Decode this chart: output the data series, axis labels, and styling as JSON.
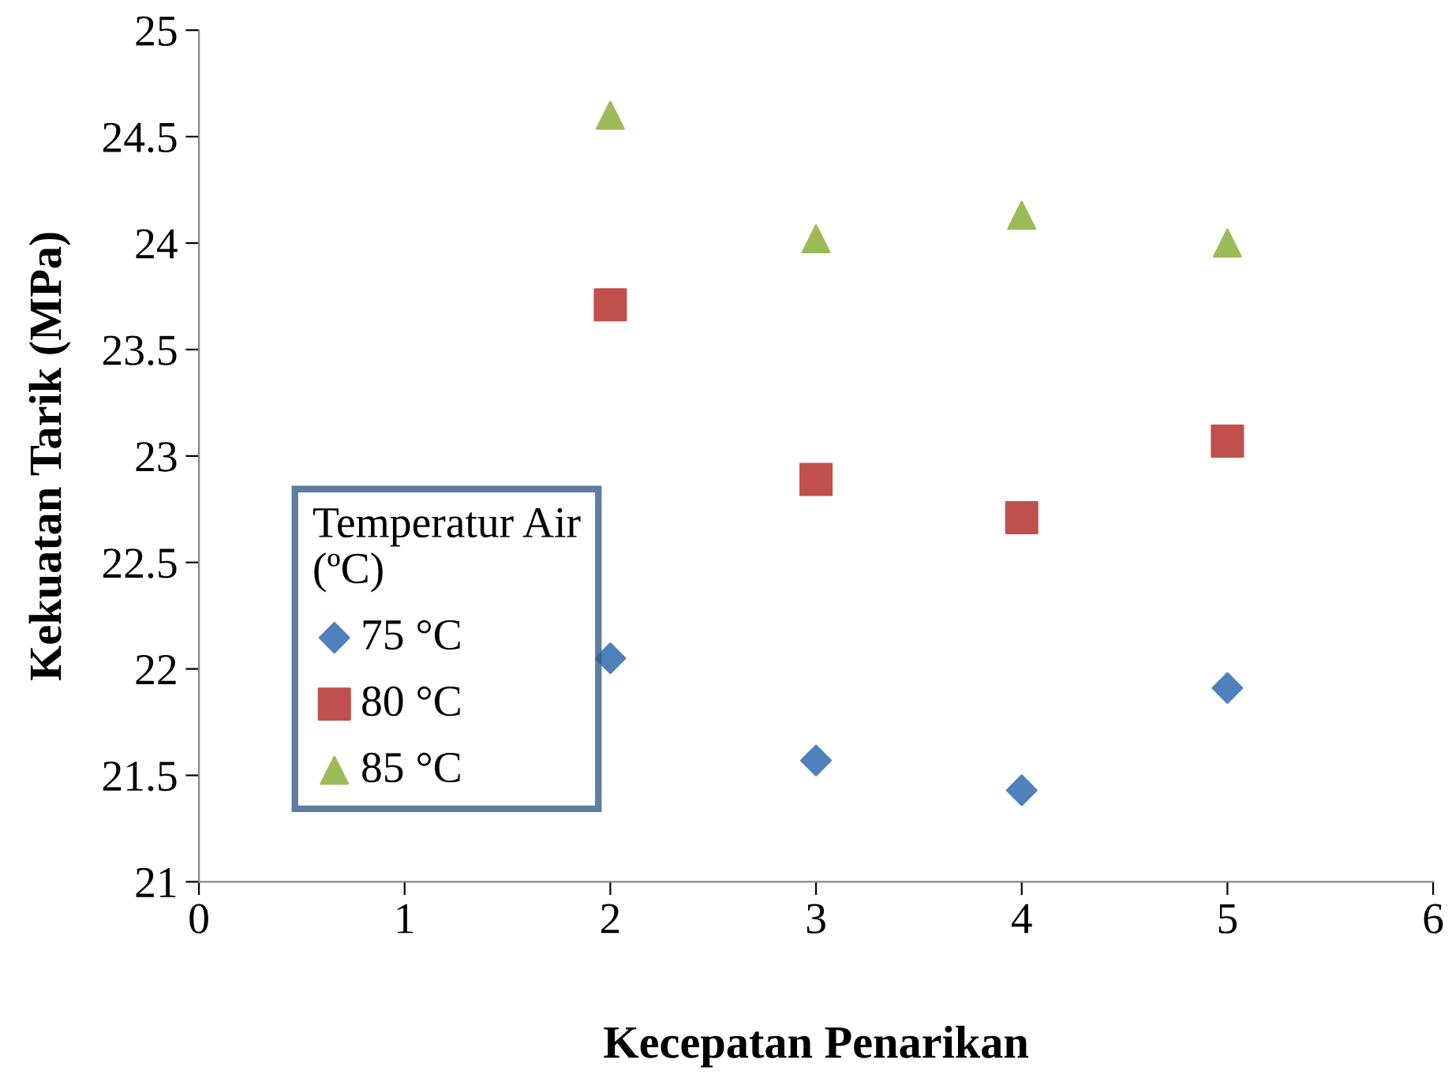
{
  "chart_data": {
    "type": "scatter",
    "xlabel": "Kecepatan Penarikan",
    "ylabel": "Kekuatan Tarik (MPa)",
    "legend_title": "Temperatur Air\n(ºC)",
    "legend": "bottom left",
    "grid": false,
    "xlim": [
      0,
      6
    ],
    "xticks": [
      0,
      1,
      2,
      3,
      4,
      5,
      6
    ],
    "ylim": [
      21,
      25
    ],
    "yticks": [
      21,
      21.5,
      22,
      22.5,
      23,
      23.5,
      24,
      24.5,
      25
    ],
    "series": [
      {
        "name": "75 °C",
        "color": "#4f81bd",
        "marker": "diamond",
        "x": [
          2,
          3,
          4,
          5
        ],
        "values": [
          22.05,
          21.57,
          21.43,
          21.91
        ]
      },
      {
        "name": "80 °C",
        "color": "#c0504d",
        "marker": "square",
        "x": [
          2,
          3,
          4,
          5
        ],
        "values": [
          23.71,
          22.89,
          22.71,
          23.07
        ]
      },
      {
        "name": "85 °C",
        "color": "#9bbb59",
        "marker": "triangle",
        "x": [
          2,
          3,
          4,
          5
        ],
        "values": [
          24.6,
          24.02,
          24.13,
          24.0
        ]
      }
    ]
  }
}
